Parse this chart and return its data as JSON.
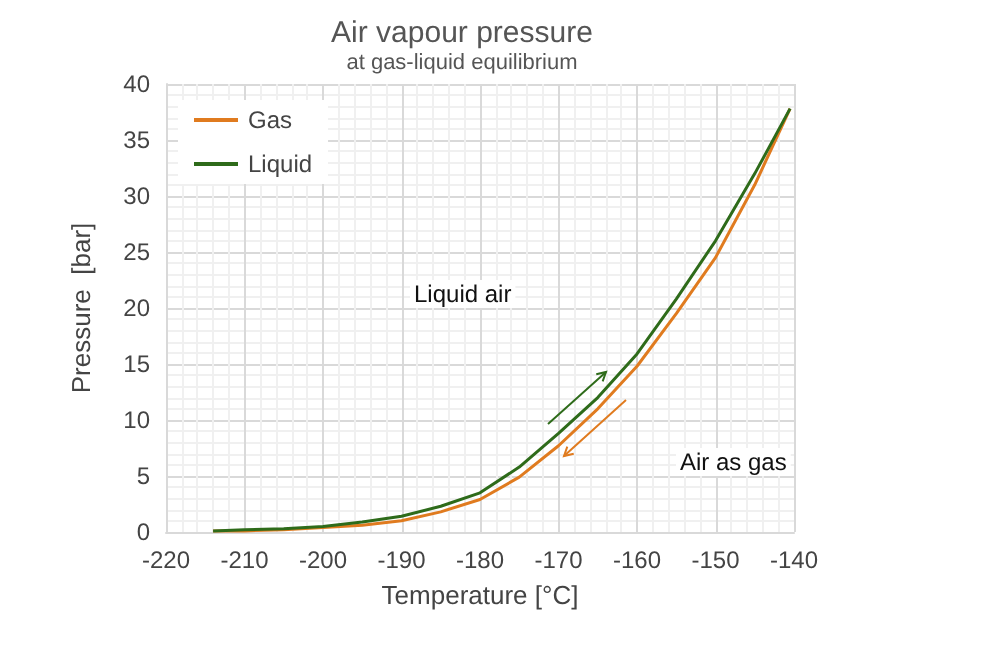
{
  "chart_data": {
    "type": "line",
    "title": "Air vapour pressure",
    "subtitle": "at gas-liquid equilibrium",
    "xlabel": "Temperature [°C]",
    "ylabel": "Pressure  [bar]",
    "annotations": [
      "Liquid air",
      "Air as gas"
    ],
    "series": [
      {
        "name": "Gas",
        "color": "#e07b1f",
        "x": [
          -214,
          -210,
          -205,
          -200,
          -195,
          -190,
          -185,
          -180,
          -175,
          -170,
          -165,
          -160,
          -155,
          -150,
          -145,
          -140.5
        ],
        "values": [
          0.1,
          0.1,
          0.2,
          0.4,
          0.6,
          1.0,
          1.8,
          2.9,
          4.9,
          7.7,
          11,
          14.8,
          19.5,
          24.5,
          31,
          37.8
        ]
      },
      {
        "name": "Liquid",
        "color": "#2e6b1a",
        "x": [
          -214,
          -210,
          -205,
          -200,
          -195,
          -190,
          -185,
          -180,
          -175,
          -170,
          -165,
          -160,
          -155,
          -150,
          -145,
          -140.5
        ],
        "values": [
          0.1,
          0.2,
          0.3,
          0.5,
          0.9,
          1.4,
          2.3,
          3.5,
          5.8,
          8.8,
          12,
          15.9,
          20.8,
          26,
          32,
          37.8
        ]
      }
    ],
    "xlim": [
      -220,
      -140
    ],
    "xticks": [
      -220,
      -210,
      -200,
      -190,
      -180,
      -170,
      -160,
      -150,
      -140
    ],
    "ylim": [
      0,
      40
    ],
    "yticks": [
      0,
      5,
      10,
      15,
      20,
      25,
      30,
      35,
      40
    ],
    "grid": true,
    "legend": "top left",
    "marker": "none",
    "line_style": "solid"
  }
}
